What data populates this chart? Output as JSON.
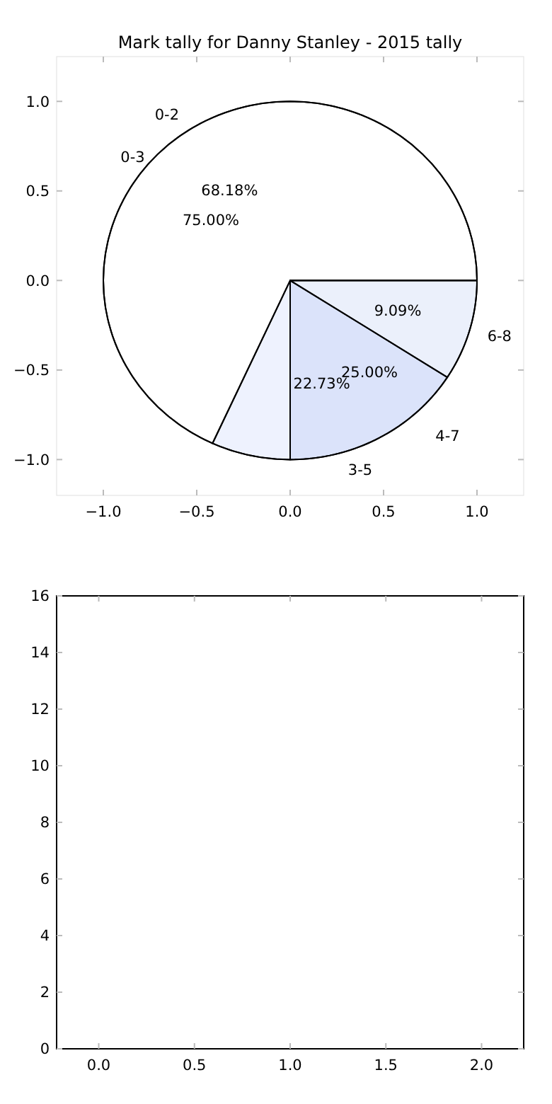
{
  "chart_data": [
    {
      "type": "scatter",
      "title": "Mark tally for Danny Stanley - 2015 tally",
      "xlim": [
        -1.25,
        1.25
      ],
      "ylim": [
        -1.2,
        1.25
      ],
      "xticks": [
        {
          "value": -1,
          "label": "−1.0"
        },
        {
          "value": -0.5,
          "label": "−0.5"
        },
        {
          "value": 0,
          "label": "0.0"
        },
        {
          "value": 0.5,
          "label": "0.5"
        },
        {
          "value": 1,
          "label": "1.0"
        }
      ],
      "yticks": [
        {
          "value": -1,
          "label": "−1.0"
        },
        {
          "value": -0.5,
          "label": "−0.5"
        },
        {
          "value": 0,
          "label": "0.0"
        },
        {
          "value": 0.5,
          "label": "0.5"
        },
        {
          "value": 1,
          "label": "1.0"
        }
      ]
    },
    {
      "type": "pie",
      "categories": [
        "0-2",
        "3-5",
        "6-8"
      ],
      "values": [
        68.18,
        22.73,
        9.09
      ],
      "colors": [
        "#ffffff",
        "#eef2fe",
        "#ffffff"
      ],
      "value_labels": [
        "68.18%",
        "22.73%",
        "9.09%"
      ]
    },
    {
      "type": "pie",
      "categories": [
        "0-3",
        "4-7"
      ],
      "values": [
        75.0,
        25.0
      ],
      "colors": [
        "#ffffff",
        "#ebf0fb"
      ],
      "value_labels": [
        "75.00%",
        "25.00%"
      ]
    },
    {
      "type": "scatter",
      "xlim": [
        -0.22,
        2.22
      ],
      "ylim": [
        0,
        16
      ],
      "xticks": [
        {
          "value": 0,
          "label": "0.0"
        },
        {
          "value": 0.5,
          "label": "0.5"
        },
        {
          "value": 1,
          "label": "1.0"
        },
        {
          "value": 1.5,
          "label": "1.5"
        },
        {
          "value": 2,
          "label": "2.0"
        }
      ],
      "yticks": [
        0,
        2,
        4,
        6,
        8,
        10,
        12,
        14,
        16
      ]
    }
  ]
}
